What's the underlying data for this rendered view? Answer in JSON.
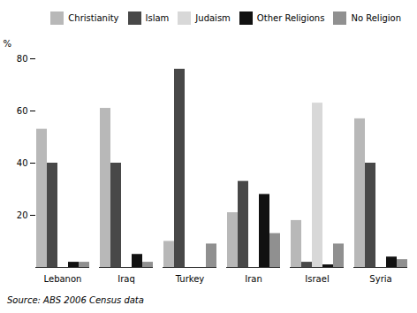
{
  "chart_data": {
    "type": "bar",
    "y_label": "%",
    "source": "Source: ABS 2006 Census data",
    "categories": [
      "Lebanon",
      "Iraq",
      "Turkey",
      "Iran",
      "Israel",
      "Syria"
    ],
    "series": [
      {
        "name": "Christianity",
        "color": "#b8b8b8",
        "values": [
          53,
          61,
          10,
          21,
          18,
          57
        ]
      },
      {
        "name": "Islam",
        "color": "#484848",
        "values": [
          40,
          40,
          76,
          33,
          2,
          40
        ]
      },
      {
        "name": "Judaism",
        "color": "#d8d8d8",
        "values": [
          0,
          0,
          0,
          0,
          63,
          0
        ]
      },
      {
        "name": "Other Religions",
        "color": "#111111",
        "values": [
          2,
          5,
          0,
          28,
          1,
          4
        ]
      },
      {
        "name": "No Religion",
        "color": "#909090",
        "values": [
          2,
          2,
          9,
          13,
          9,
          3
        ]
      }
    ],
    "ylim": [
      0,
      80
    ],
    "yticks": [
      20,
      40,
      60,
      80
    ],
    "legend": "upper right"
  }
}
